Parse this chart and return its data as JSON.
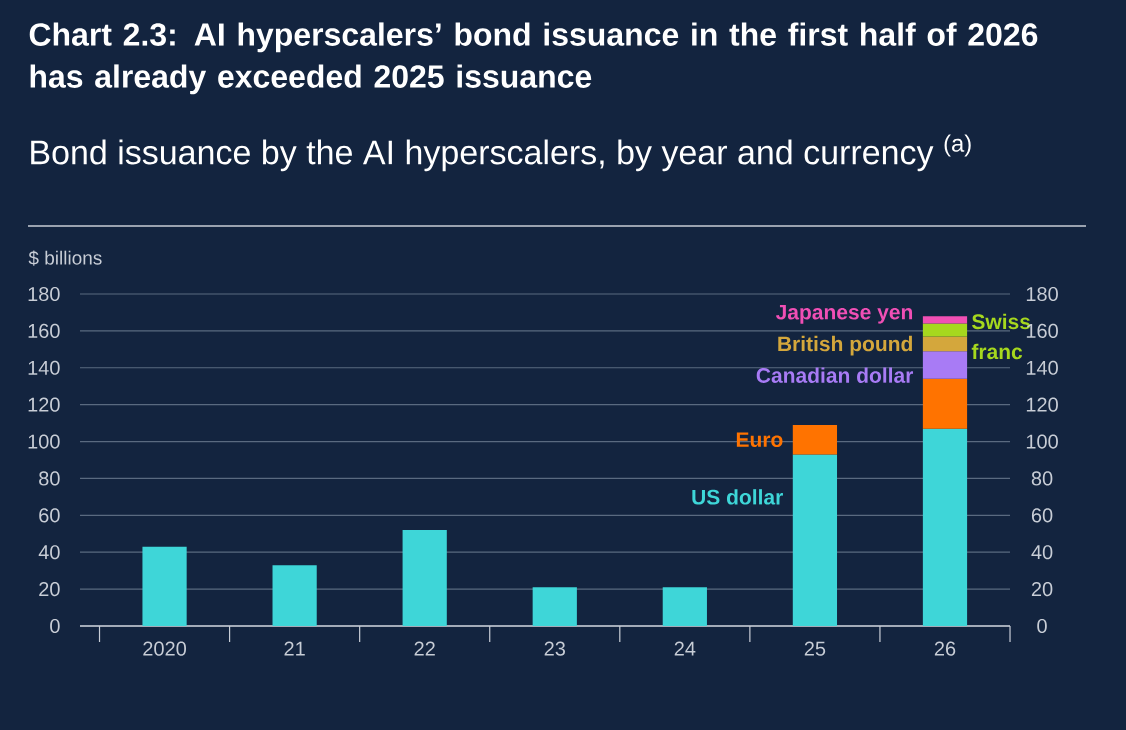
{
  "chart_data": {
    "type": "bar",
    "title": "Chart 2.3: AI hyperscalers’ bond issuance in the first half of 2026 has already exceeded 2025 issuance",
    "subtitle": "Bond issuance by the AI hyperscalers, by year and currency $^{(a)}$",
    "ylabel": "$ billions",
    "categories": [
      "2020",
      "21",
      "22",
      "23",
      "24",
      "25",
      "26"
    ],
    "stacked": true,
    "series": [
      {
        "name": "US dollar",
        "color": "#3ed6d8",
        "values": [
          43,
          33,
          52,
          21,
          21,
          93,
          107
        ]
      },
      {
        "name": "Euro",
        "color": "#ff7300",
        "values": [
          null,
          null,
          null,
          null,
          null,
          16,
          27
        ]
      },
      {
        "name": "Canadian dollar",
        "color": "#a87bf5",
        "values": [
          null,
          null,
          null,
          null,
          null,
          null,
          15
        ]
      },
      {
        "name": "British pound",
        "color": "#d4a73c",
        "values": [
          null,
          null,
          null,
          null,
          null,
          null,
          8
        ]
      },
      {
        "name": "Swiss franc",
        "color": "#a6d81e",
        "values": [
          null,
          null,
          null,
          null,
          null,
          null,
          7
        ]
      },
      {
        "name": "Japanese yen",
        "color": "#f04fb5",
        "values": [
          null,
          null,
          null,
          null,
          null,
          null,
          4
        ]
      }
    ],
    "ylim": [
      0,
      180
    ],
    "yticks": [
      0,
      20,
      40,
      60,
      80,
      100,
      120,
      140,
      160,
      180
    ],
    "y2lim": [
      0,
      180
    ],
    "y2ticks": [
      0,
      20,
      40,
      60,
      80,
      100,
      120,
      140,
      160,
      180
    ],
    "grid": "y"
  }
}
